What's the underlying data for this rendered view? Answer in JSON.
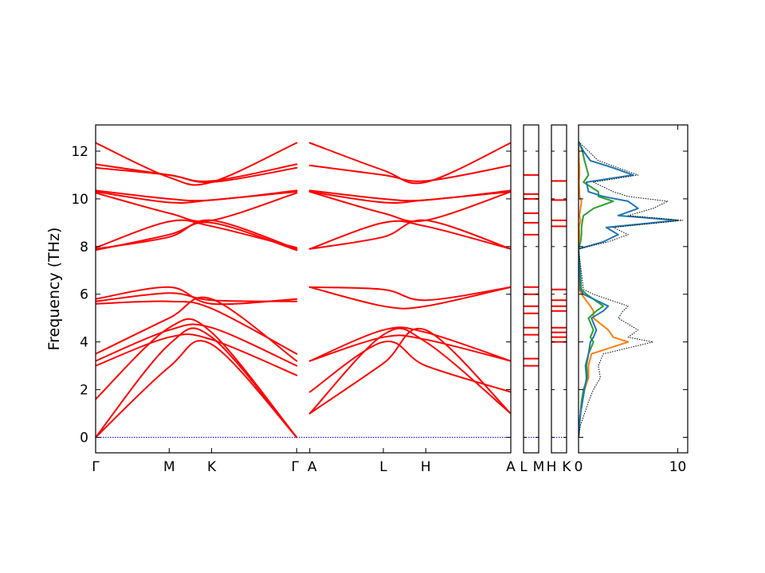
{
  "chart_data": {
    "type": "line",
    "ylabel": "Frequency (THz)",
    "ylim": [
      -0.65,
      13.1
    ],
    "yticks": [
      "0",
      "2",
      "4",
      "6",
      "8",
      "10",
      "12"
    ],
    "colors": {
      "band": "#ff0000",
      "zero_line": "#0000ff",
      "dos_total": "#000000",
      "dos_blue": "#1f77b4",
      "dos_orange": "#ff7f0e",
      "dos_green": "#2ca02c"
    },
    "panels": [
      {
        "id": "main-path",
        "labels": [
          "Γ",
          "M",
          "K",
          "Γ",
          "A",
          "L",
          "H",
          "A"
        ],
        "label_x": [
          0,
          0.577,
          0.91,
          1.577,
          1.68,
          2.257,
          2.59,
          3.257
        ]
      },
      {
        "id": "LM",
        "labels": [
          "L",
          "M"
        ]
      },
      {
        "id": "HK",
        "labels": [
          "H",
          "K"
        ]
      },
      {
        "id": "dos",
        "xticks": [
          "0",
          "10"
        ],
        "xlim": [
          0,
          11
        ]
      }
    ],
    "bands_gamma_to_gamma": [
      {
        "k": [
          0,
          0.577,
          0.91,
          1.577
        ],
        "y": [
          12.35,
          10.9,
          10.7,
          12.35
        ]
      },
      {
        "k": [
          0,
          0.577,
          0.91,
          1.577
        ],
        "y": [
          11.45,
          11.0,
          10.75,
          11.45
        ]
      },
      {
        "k": [
          0,
          0.577,
          0.91,
          1.577
        ],
        "y": [
          11.3,
          11.0,
          10.7,
          11.3
        ]
      },
      {
        "k": [
          0,
          0.577,
          0.91,
          1.577
        ],
        "y": [
          10.35,
          10.0,
          9.95,
          10.35
        ]
      },
      {
        "k": [
          0,
          0.577,
          0.91,
          1.577
        ],
        "y": [
          10.3,
          9.85,
          9.95,
          10.3
        ]
      },
      {
        "k": [
          0,
          0.577,
          0.91,
          1.577
        ],
        "y": [
          10.25,
          9.4,
          9.1,
          10.25
        ]
      },
      {
        "k": [
          0,
          0.577,
          0.91,
          1.577
        ],
        "y": [
          7.95,
          9.05,
          8.85,
          7.95
        ]
      },
      {
        "k": [
          0,
          0.577,
          0.91,
          1.577
        ],
        "y": [
          7.9,
          8.4,
          9.1,
          7.9
        ]
      },
      {
        "k": [
          0,
          0.577,
          0.91,
          1.577
        ],
        "y": [
          7.85,
          8.5,
          9.0,
          7.85
        ]
      },
      {
        "k": [
          0,
          0.577,
          0.91,
          1.577
        ],
        "y": [
          5.8,
          6.3,
          5.6,
          5.8
        ]
      },
      {
        "k": [
          0,
          0.577,
          0.91,
          1.577
        ],
        "y": [
          5.7,
          6.05,
          5.75,
          5.7
        ]
      },
      {
        "k": [
          0,
          0.577,
          0.91,
          1.577
        ],
        "y": [
          5.6,
          5.7,
          5.4,
          3.5
        ]
      },
      {
        "k": [
          0,
          0.577,
          0.91,
          1.577
        ],
        "y": [
          3.5,
          5.0,
          5.8,
          3.2
        ]
      },
      {
        "k": [
          0,
          0.577,
          0.91,
          1.577
        ],
        "y": [
          3.2,
          4.5,
          4.6,
          3.0
        ]
      },
      {
        "k": [
          0,
          0.577,
          0.91,
          1.577
        ],
        "y": [
          3.0,
          4.2,
          4.1,
          2.6
        ]
      },
      {
        "k": [
          0,
          0.577,
          0.91,
          1.577
        ],
        "y": [
          1.6,
          4.6,
          4.4,
          0.0
        ]
      },
      {
        "k": [
          0,
          0.577,
          0.91,
          1.577
        ],
        "y": [
          0.0,
          3.9,
          4.2,
          0.0
        ]
      },
      {
        "k": [
          0,
          0.577,
          0.91,
          1.577
        ],
        "y": [
          0.0,
          2.95,
          3.9,
          0.0
        ]
      }
    ],
    "bands_A_to_A": [
      {
        "k": [
          1.68,
          2.257,
          2.59,
          3.257
        ],
        "y": [
          12.35,
          11.2,
          10.7,
          12.35
        ]
      },
      {
        "k": [
          1.68,
          2.257,
          2.59,
          3.257
        ],
        "y": [
          11.4,
          11.0,
          10.75,
          11.4
        ]
      },
      {
        "k": [
          1.68,
          2.257,
          2.59,
          3.257
        ],
        "y": [
          10.35,
          10.0,
          9.95,
          10.35
        ]
      },
      {
        "k": [
          1.68,
          2.257,
          2.59,
          3.257
        ],
        "y": [
          10.3,
          9.85,
          9.95,
          10.3
        ]
      },
      {
        "k": [
          1.68,
          2.257,
          2.59,
          3.257
        ],
        "y": [
          10.3,
          9.4,
          9.1,
          10.3
        ]
      },
      {
        "k": [
          1.68,
          2.257,
          2.59,
          3.257
        ],
        "y": [
          7.9,
          9.0,
          8.85,
          7.9
        ]
      },
      {
        "k": [
          1.68,
          2.257,
          2.59,
          3.257
        ],
        "y": [
          7.9,
          8.4,
          9.1,
          7.9
        ]
      },
      {
        "k": [
          1.68,
          2.257,
          2.59,
          3.257
        ],
        "y": [
          6.3,
          6.2,
          5.75,
          6.3
        ]
      },
      {
        "k": [
          1.68,
          2.257,
          2.59,
          3.257
        ],
        "y": [
          6.3,
          5.5,
          5.5,
          6.3
        ]
      },
      {
        "k": [
          1.68,
          2.257,
          2.59,
          3.257
        ],
        "y": [
          3.2,
          4.5,
          4.4,
          3.2
        ]
      },
      {
        "k": [
          1.68,
          2.257,
          2.59,
          3.257
        ],
        "y": [
          3.2,
          4.2,
          4.1,
          3.2
        ]
      },
      {
        "k": [
          1.68,
          2.257,
          2.59,
          3.257
        ],
        "y": [
          1.0,
          3.1,
          4.5,
          1.0
        ]
      },
      {
        "k": [
          1.68,
          2.257,
          2.59,
          3.257
        ],
        "y": [
          1.0,
          4.3,
          4.0,
          1.0
        ]
      },
      {
        "k": [
          1.68,
          2.257,
          2.59,
          3.257
        ],
        "y": [
          1.9,
          4.0,
          3.0,
          1.9
        ]
      }
    ],
    "segment_LM_levels": [
      11.0,
      10.2,
      10.0,
      9.4,
      9.0,
      8.5,
      6.3,
      6.0,
      5.5,
      5.2,
      4.6,
      4.3,
      3.3,
      3.0
    ],
    "segment_HK_levels": [
      10.75,
      9.95,
      9.1,
      8.85,
      6.2,
      5.75,
      5.5,
      5.3,
      4.6,
      4.4,
      4.2,
      4.0
    ],
    "dos": {
      "freq": [
        0,
        0.5,
        1,
        1.5,
        2,
        2.5,
        3,
        3.5,
        4,
        4.2,
        4.5,
        5,
        5.3,
        5.5,
        6,
        6.2,
        7.9,
        8.2,
        8.5,
        8.8,
        9.1,
        9.3,
        9.6,
        9.9,
        10.1,
        10.3,
        10.7,
        11,
        11.3,
        11.6,
        12,
        12.4
      ],
      "total": [
        0,
        0.2,
        0.6,
        1.0,
        1.5,
        2.2,
        2.0,
        2.5,
        7.5,
        5.0,
        6.0,
        4.0,
        4.5,
        5.0,
        1.5,
        0.5,
        0,
        3.0,
        5.0,
        3.5,
        10.5,
        5.0,
        7.5,
        9.0,
        5.0,
        3.5,
        1.5,
        6.0,
        4.0,
        2.0,
        1.0,
        0
      ],
      "blue": [
        0,
        0.1,
        0.2,
        0.4,
        0.6,
        0.8,
        0.7,
        1.0,
        1.2,
        1.5,
        1.8,
        1.3,
        2.5,
        3.0,
        0.5,
        0.2,
        0,
        2.5,
        4.0,
        2.8,
        10.0,
        4.0,
        6.0,
        5.0,
        2.5,
        1.0,
        0.8,
        5.5,
        3.5,
        1.2,
        0.5,
        0
      ],
      "orange": [
        0,
        0.05,
        0.2,
        0.3,
        0.6,
        1.0,
        1.0,
        1.3,
        5.0,
        3.5,
        3.0,
        1.5,
        1.5,
        1.2,
        0.3,
        0.1,
        0,
        0.05,
        0.1,
        0.05,
        0.2,
        0.1,
        0.2,
        0.3,
        0.1,
        0.1,
        0.05,
        0.1,
        0.1,
        0.05,
        0.02,
        0
      ],
      "green": [
        0,
        0.05,
        0.2,
        0.3,
        0.5,
        0.9,
        0.8,
        1.0,
        1.5,
        1.2,
        1.5,
        1.0,
        1.8,
        2.5,
        0.8,
        0.3,
        0,
        0.2,
        0.3,
        0.3,
        0.4,
        0.5,
        1.5,
        3.5,
        2.0,
        2.0,
        0.5,
        1.0,
        0.8,
        0.6,
        0.4,
        0
      ]
    }
  }
}
